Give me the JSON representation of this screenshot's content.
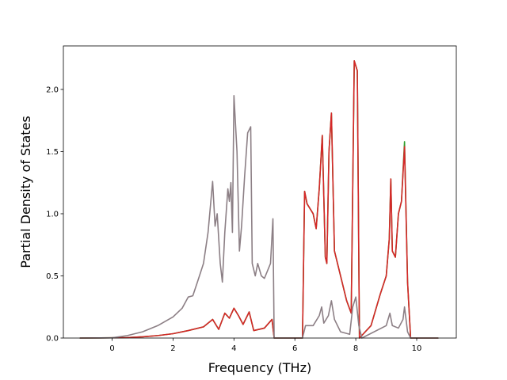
{
  "chart_data": {
    "type": "line",
    "title": "",
    "xlabel": "Frequency (THz)",
    "ylabel": "Partial Density of States",
    "xlim": [
      -1.6,
      11.3
    ],
    "ylim": [
      0.0,
      2.35
    ],
    "xticks": [
      0,
      2,
      4,
      6,
      8,
      10
    ],
    "xtick_labels": [
      "0",
      "2",
      "4",
      "6",
      "8",
      "10"
    ],
    "yticks": [
      0.0,
      0.5,
      1.0,
      1.5,
      2.0
    ],
    "ytick_labels": [
      "0.0",
      "0.5",
      "1.0",
      "1.5",
      "2.0"
    ],
    "grid": false,
    "legend": false,
    "series": [
      {
        "color": "#2ca02c",
        "points": [
          [
            -1.05,
            0
          ],
          [
            0,
            0.002
          ],
          [
            0.5,
            0.004
          ],
          [
            1,
            0.01
          ],
          [
            1.5,
            0.02
          ],
          [
            2,
            0.035
          ],
          [
            2.5,
            0.06
          ],
          [
            3,
            0.09
          ],
          [
            3.3,
            0.15
          ],
          [
            3.5,
            0.07
          ],
          [
            3.7,
            0.2
          ],
          [
            3.85,
            0.16
          ],
          [
            4,
            0.24
          ],
          [
            4.15,
            0.18
          ],
          [
            4.3,
            0.11
          ],
          [
            4.5,
            0.21
          ],
          [
            4.65,
            0.06
          ],
          [
            5.0,
            0.08
          ],
          [
            5.25,
            0.15
          ],
          [
            5.32,
            0.0
          ],
          [
            6.25,
            0.0
          ],
          [
            6.32,
            1.18
          ],
          [
            6.4,
            1.08
          ],
          [
            6.6,
            1.0
          ],
          [
            6.7,
            0.88
          ],
          [
            6.8,
            1.2
          ],
          [
            6.9,
            1.63
          ],
          [
            7.0,
            0.65
          ],
          [
            7.05,
            0.6
          ],
          [
            7.12,
            1.5
          ],
          [
            7.2,
            1.81
          ],
          [
            7.3,
            0.7
          ],
          [
            7.5,
            0.5
          ],
          [
            7.7,
            0.3
          ],
          [
            7.85,
            0.2
          ],
          [
            7.95,
            2.23
          ],
          [
            8.05,
            2.15
          ],
          [
            8.12,
            0.0
          ],
          [
            8.5,
            0.1
          ],
          [
            8.8,
            0.35
          ],
          [
            9.0,
            0.5
          ],
          [
            9.1,
            0.8
          ],
          [
            9.15,
            1.28
          ],
          [
            9.2,
            0.7
          ],
          [
            9.3,
            0.65
          ],
          [
            9.4,
            1.0
          ],
          [
            9.5,
            1.1
          ],
          [
            9.6,
            1.58
          ],
          [
            9.7,
            0.45
          ],
          [
            9.8,
            0.0
          ],
          [
            10.7,
            0.0
          ]
        ]
      },
      {
        "color": "#d62728",
        "points": [
          [
            -1.05,
            0
          ],
          [
            0,
            0.002
          ],
          [
            0.5,
            0.004
          ],
          [
            1,
            0.01
          ],
          [
            1.5,
            0.02
          ],
          [
            2,
            0.035
          ],
          [
            2.5,
            0.06
          ],
          [
            3,
            0.09
          ],
          [
            3.3,
            0.15
          ],
          [
            3.5,
            0.07
          ],
          [
            3.7,
            0.2
          ],
          [
            3.85,
            0.16
          ],
          [
            4,
            0.24
          ],
          [
            4.15,
            0.18
          ],
          [
            4.3,
            0.11
          ],
          [
            4.5,
            0.21
          ],
          [
            4.65,
            0.06
          ],
          [
            5.0,
            0.08
          ],
          [
            5.25,
            0.15
          ],
          [
            5.32,
            0.0
          ],
          [
            6.25,
            0.0
          ],
          [
            6.32,
            1.18
          ],
          [
            6.4,
            1.08
          ],
          [
            6.6,
            1.0
          ],
          [
            6.7,
            0.88
          ],
          [
            6.8,
            1.2
          ],
          [
            6.9,
            1.63
          ],
          [
            7.0,
            0.65
          ],
          [
            7.05,
            0.6
          ],
          [
            7.12,
            1.5
          ],
          [
            7.2,
            1.81
          ],
          [
            7.3,
            0.7
          ],
          [
            7.5,
            0.5
          ],
          [
            7.7,
            0.3
          ],
          [
            7.85,
            0.2
          ],
          [
            7.95,
            2.23
          ],
          [
            8.05,
            2.15
          ],
          [
            8.12,
            0.0
          ],
          [
            8.5,
            0.1
          ],
          [
            8.8,
            0.35
          ],
          [
            9.0,
            0.5
          ],
          [
            9.1,
            0.8
          ],
          [
            9.15,
            1.28
          ],
          [
            9.2,
            0.7
          ],
          [
            9.3,
            0.65
          ],
          [
            9.4,
            1.0
          ],
          [
            9.5,
            1.1
          ],
          [
            9.6,
            1.54
          ],
          [
            9.7,
            0.45
          ],
          [
            9.8,
            0.0
          ],
          [
            10.7,
            0.0
          ]
        ]
      },
      {
        "color": "#8c7f85",
        "points": [
          [
            -1.05,
            0
          ],
          [
            0,
            0.002
          ],
          [
            0.5,
            0.02
          ],
          [
            1,
            0.05
          ],
          [
            1.5,
            0.1
          ],
          [
            2,
            0.17
          ],
          [
            2.3,
            0.24
          ],
          [
            2.5,
            0.33
          ],
          [
            2.65,
            0.34
          ],
          [
            2.8,
            0.45
          ],
          [
            3.0,
            0.6
          ],
          [
            3.15,
            0.85
          ],
          [
            3.3,
            1.26
          ],
          [
            3.38,
            0.9
          ],
          [
            3.45,
            1.0
          ],
          [
            3.55,
            0.6
          ],
          [
            3.62,
            0.45
          ],
          [
            3.7,
            0.85
          ],
          [
            3.8,
            1.2
          ],
          [
            3.85,
            1.1
          ],
          [
            3.9,
            1.25
          ],
          [
            3.95,
            0.85
          ],
          [
            4.0,
            1.95
          ],
          [
            4.1,
            1.5
          ],
          [
            4.18,
            0.7
          ],
          [
            4.25,
            0.9
          ],
          [
            4.35,
            1.3
          ],
          [
            4.45,
            1.65
          ],
          [
            4.55,
            1.7
          ],
          [
            4.6,
            0.6
          ],
          [
            4.7,
            0.5
          ],
          [
            4.78,
            0.6
          ],
          [
            4.9,
            0.5
          ],
          [
            5.0,
            0.48
          ],
          [
            5.2,
            0.6
          ],
          [
            5.28,
            0.96
          ],
          [
            5.32,
            0.0
          ],
          [
            6.25,
            0.0
          ],
          [
            6.35,
            0.1
          ],
          [
            6.6,
            0.1
          ],
          [
            6.8,
            0.18
          ],
          [
            6.88,
            0.25
          ],
          [
            6.95,
            0.12
          ],
          [
            7.1,
            0.18
          ],
          [
            7.2,
            0.3
          ],
          [
            7.3,
            0.15
          ],
          [
            7.5,
            0.05
          ],
          [
            7.8,
            0.03
          ],
          [
            7.9,
            0.25
          ],
          [
            8.0,
            0.33
          ],
          [
            8.1,
            0.1
          ],
          [
            8.2,
            0.0
          ],
          [
            9.0,
            0.1
          ],
          [
            9.12,
            0.2
          ],
          [
            9.2,
            0.1
          ],
          [
            9.4,
            0.08
          ],
          [
            9.55,
            0.15
          ],
          [
            9.6,
            0.25
          ],
          [
            9.7,
            0.05
          ],
          [
            9.8,
            0.0
          ],
          [
            10.7,
            0.0
          ]
        ]
      }
    ]
  }
}
